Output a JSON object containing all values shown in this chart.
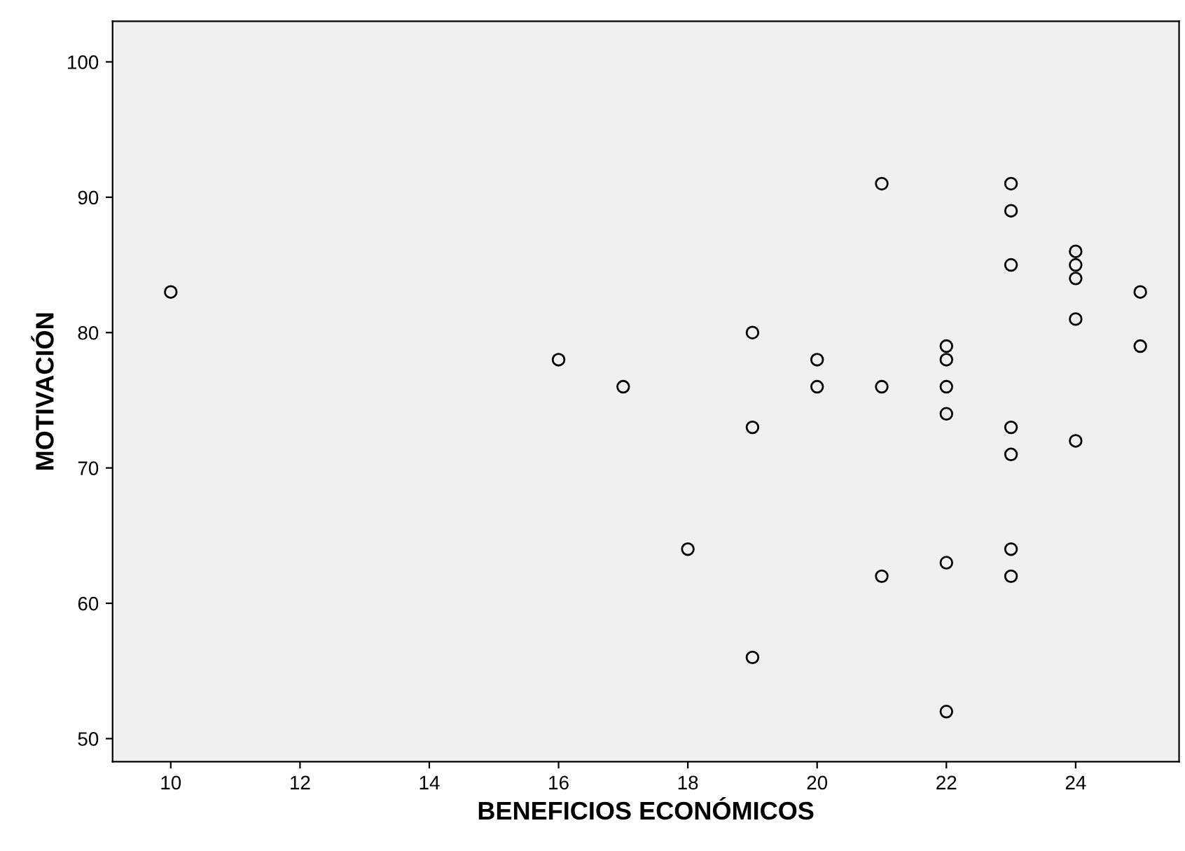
{
  "chart_data": {
    "type": "scatter",
    "xlabel": "BENEFICIOS ECONÓMICOS",
    "ylabel": "MOTIVACIÓN",
    "x": [
      10,
      16,
      17,
      18,
      19,
      19,
      19,
      20,
      20,
      21,
      21,
      21,
      22,
      22,
      22,
      22,
      22,
      22,
      23,
      23,
      23,
      23,
      23,
      23,
      23,
      24,
      24,
      24,
      24,
      24,
      25,
      25
    ],
    "series": [
      {
        "color": "#000000",
        "values": [
          83,
          78,
          76,
          64,
          80,
          73,
          56,
          78,
          76,
          91,
          76,
          62,
          79,
          78,
          76,
          74,
          63,
          52,
          91,
          89,
          85,
          73,
          71,
          64,
          62,
          86,
          85,
          84,
          81,
          72,
          83,
          79
        ]
      }
    ],
    "xlim": [
      9.1,
      25.6
    ],
    "ylim": [
      48.3,
      103
    ],
    "xticks": [
      10,
      12,
      14,
      16,
      18,
      20,
      22,
      24
    ],
    "yticks": [
      50,
      60,
      70,
      80,
      90,
      100
    ],
    "marker": "circle",
    "grid": false,
    "legend": false
  }
}
